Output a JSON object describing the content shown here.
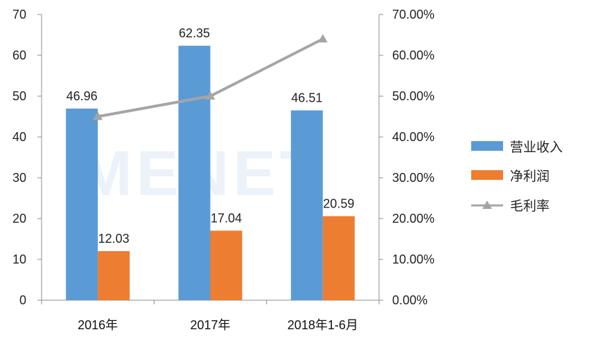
{
  "chart_data": {
    "type": "bar",
    "categories": [
      "2016年",
      "2017年",
      "2018年1-6月"
    ],
    "series": [
      {
        "name": "营业收入",
        "kind": "bar",
        "axis": "left",
        "color": "#5b9bd5",
        "values": [
          46.96,
          62.35,
          46.51
        ]
      },
      {
        "name": "净利润",
        "kind": "bar",
        "axis": "left",
        "color": "#ed7d31",
        "values": [
          12.03,
          17.04,
          20.59
        ]
      },
      {
        "name": "毛利率",
        "kind": "line",
        "axis": "right",
        "color": "#a5a5a5",
        "marker": "triangle",
        "values": [
          0.45,
          0.5,
          0.64
        ]
      }
    ],
    "data_labels": {
      "营业收入": [
        "46.96",
        "62.35",
        "46.51"
      ],
      "净利润": [
        "12.03",
        "17.04",
        "20.59"
      ]
    },
    "y_left": {
      "min": 0,
      "max": 70,
      "ticks": [
        "0",
        "10",
        "20",
        "30",
        "40",
        "50",
        "60",
        "70"
      ]
    },
    "y_right": {
      "min": 0,
      "max": 0.7,
      "ticks": [
        "0.00%",
        "10.00%",
        "20.00%",
        "30.00%",
        "40.00%",
        "50.00%",
        "60.00%",
        "70.00%"
      ]
    },
    "legend": {
      "placement": "right",
      "items": [
        "营业收入",
        "净利润",
        "毛利率"
      ]
    },
    "grid": false,
    "watermark": "MENET"
  }
}
